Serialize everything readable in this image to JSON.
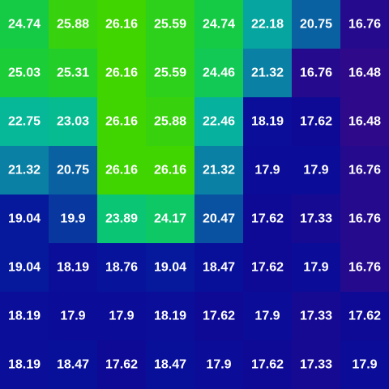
{
  "chart_data": {
    "type": "heatmap",
    "rows": 8,
    "cols": 8,
    "values": [
      [
        24.74,
        25.88,
        26.16,
        25.59,
        24.74,
        22.18,
        20.75,
        16.76
      ],
      [
        25.03,
        25.31,
        26.16,
        25.59,
        24.46,
        21.32,
        16.76,
        16.48
      ],
      [
        22.75,
        23.03,
        26.16,
        25.88,
        22.46,
        18.19,
        17.62,
        16.48
      ],
      [
        21.32,
        20.75,
        26.16,
        26.16,
        21.32,
        17.9,
        17.9,
        16.76
      ],
      [
        19.04,
        19.9,
        23.89,
        24.17,
        20.47,
        17.62,
        17.33,
        16.76
      ],
      [
        19.04,
        18.19,
        18.76,
        19.04,
        18.47,
        17.62,
        17.9,
        16.76
      ],
      [
        18.19,
        17.9,
        17.9,
        18.19,
        17.62,
        17.9,
        17.33,
        17.62
      ],
      [
        18.19,
        18.47,
        17.62,
        18.47,
        17.9,
        17.62,
        17.33,
        17.9
      ]
    ],
    "labels": [
      [
        "24.74",
        "25.88",
        "26.16",
        "25.59",
        "24.74",
        "22.18",
        "20.75",
        "16.76"
      ],
      [
        "25.03",
        "25.31",
        "26.16",
        "25.59",
        "24.46",
        "21.32",
        "16.76",
        "16.48"
      ],
      [
        "22.75",
        "23.03",
        "26.16",
        "25.88",
        "22.46",
        "18.19",
        "17.62",
        "16.48"
      ],
      [
        "21.32",
        "20.75",
        "26.16",
        "26.16",
        "21.32",
        "17.9",
        "17.9",
        "16.76"
      ],
      [
        "19.04",
        "19.9",
        "23.89",
        "24.17",
        "20.47",
        "17.62",
        "17.33",
        "16.76"
      ],
      [
        "19.04",
        "18.19",
        "18.76",
        "19.04",
        "18.47",
        "17.62",
        "17.9",
        "16.76"
      ],
      [
        "18.19",
        "17.9",
        "17.9",
        "18.19",
        "17.62",
        "17.9",
        "17.33",
        "17.62"
      ],
      [
        "18.19",
        "18.47",
        "17.62",
        "18.47",
        "17.9",
        "17.62",
        "17.33",
        "17.9"
      ]
    ],
    "colormap": [
      "#2e0a8a",
      "#0c0a96",
      "#06149c",
      "#073ea0",
      "#0a80a4",
      "#06b49e",
      "#08c47c",
      "#18cc3a",
      "#40d400"
    ],
    "value_range": [
      16.48,
      26.16
    ],
    "label_color": "#ffffff"
  }
}
